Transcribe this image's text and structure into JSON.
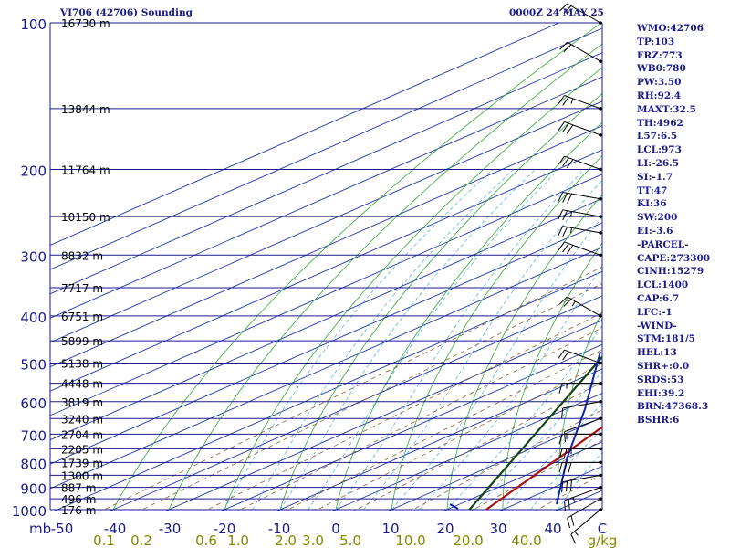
{
  "header": {
    "title_left": "VI706 (42706) Sounding",
    "title_right": "0000Z 24 MAY 25"
  },
  "stats": [
    "WMO:42706",
    "TP:103",
    "FRZ:773",
    "WB0:780",
    "PW:3.50",
    "RH:92.4",
    "MAXT:32.5",
    "TH:4962",
    "L57:6.5",
    "LCL:973",
    "LI:-26.5",
    "SI:-1.7",
    "TT:47",
    "KI:36",
    "SW:200",
    "EI:-3.6",
    "-PARCEL-",
    "CAPE:273300",
    "CINH:15279",
    "LCL:1400",
    "CAP:6.7",
    "LFC:-1",
    "-WIND-",
    "STM:181/5",
    "HEL:13",
    "SHR+:0.0",
    "SRDS:53",
    "EHI:39.2",
    "BRN:47368.3",
    "BSHR:6"
  ],
  "colors": {
    "isobar": "#1a1a8c",
    "isotherm": "#2233aa",
    "dry_adiabat": "#33aa33",
    "moist_adiabat": "#44aadd",
    "mixing_ratio": "#886633",
    "temperature": "#aa1111",
    "dewpoint": "#114411",
    "hodograph": "#1122aa",
    "text": "#1a1a8c",
    "axis_label": "#888800"
  },
  "chart_data": {
    "type": "skew-t log-p",
    "pressure_ticks": [
      100,
      200,
      300,
      400,
      500,
      600,
      700,
      800,
      900,
      1000
    ],
    "pressure_unit": "mb",
    "height_labels": [
      {
        "p": 100,
        "h": "16730 m"
      },
      {
        "p": 150,
        "h": "13844 m"
      },
      {
        "p": 200,
        "h": "11764 m"
      },
      {
        "p": 250,
        "h": "10150 m"
      },
      {
        "p": 300,
        "h": "8832 m"
      },
      {
        "p": 350,
        "h": "7717 m"
      },
      {
        "p": 400,
        "h": "6751 m"
      },
      {
        "p": 450,
        "h": "5899 m"
      },
      {
        "p": 500,
        "h": "5138 m"
      },
      {
        "p": 550,
        "h": "4448 m"
      },
      {
        "p": 600,
        "h": "3819 m"
      },
      {
        "p": 650,
        "h": "3240 m"
      },
      {
        "p": 700,
        "h": "2704 m"
      },
      {
        "p": 750,
        "h": "2205 m"
      },
      {
        "p": 800,
        "h": "1739 m"
      },
      {
        "p": 850,
        "h": "1300 m"
      },
      {
        "p": 900,
        "h": "887 m"
      },
      {
        "p": 950,
        "h": "496 m"
      },
      {
        "p": 1000,
        "h": "176 m"
      }
    ],
    "temperature_ticks": [
      "-50",
      "-40",
      "-30",
      "-20",
      "-10",
      "0",
      "10",
      "20",
      "30",
      "40",
      "C"
    ],
    "mixing_ratio_ticks": [
      "0.1",
      "0.2",
      "0.6",
      "1.0",
      "2.0",
      "3.0",
      "5.0",
      "10.0",
      "20.0",
      "40.0",
      "g/kg"
    ],
    "temperature_profile": [
      {
        "p": 1000,
        "t": 27
      },
      {
        "p": 100,
        "t": -50
      }
    ],
    "dewpoint_profile": [
      {
        "p": 1000,
        "t": 24
      },
      {
        "p": 100,
        "t": -100
      }
    ],
    "wind_barbs": [
      {
        "p": 100,
        "dir": 300,
        "spd": 20
      },
      {
        "p": 120,
        "dir": 300,
        "spd": 20
      },
      {
        "p": 150,
        "dir": 290,
        "spd": 25
      },
      {
        "p": 170,
        "dir": 290,
        "spd": 30
      },
      {
        "p": 200,
        "dir": 290,
        "spd": 30
      },
      {
        "p": 230,
        "dir": 280,
        "spd": 30
      },
      {
        "p": 250,
        "dir": 280,
        "spd": 25
      },
      {
        "p": 270,
        "dir": 280,
        "spd": 25
      },
      {
        "p": 300,
        "dir": 290,
        "spd": 30
      },
      {
        "p": 400,
        "dir": 300,
        "spd": 25
      },
      {
        "p": 500,
        "dir": 290,
        "spd": 20
      },
      {
        "p": 550,
        "dir": 270,
        "spd": 15
      },
      {
        "p": 600,
        "dir": 260,
        "spd": 10
      },
      {
        "p": 650,
        "dir": 250,
        "spd": 10
      },
      {
        "p": 700,
        "dir": 270,
        "spd": 15
      },
      {
        "p": 750,
        "dir": 270,
        "spd": 25
      },
      {
        "p": 800,
        "dir": 270,
        "spd": 30
      },
      {
        "p": 850,
        "dir": 260,
        "spd": 30
      },
      {
        "p": 900,
        "dir": 250,
        "spd": 25
      },
      {
        "p": 950,
        "dir": 240,
        "spd": 20
      },
      {
        "p": 1000,
        "dir": 230,
        "spd": 15
      }
    ]
  }
}
